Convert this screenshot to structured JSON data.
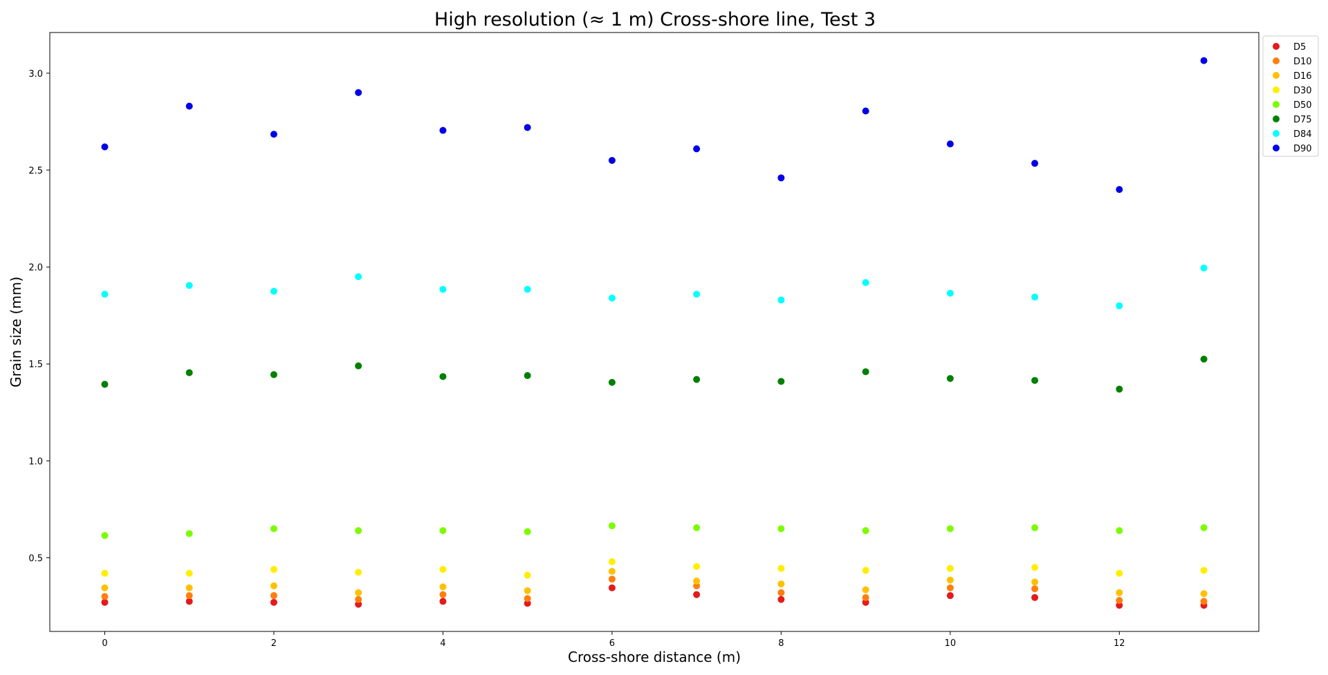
{
  "chart_data": {
    "type": "scatter",
    "title": "High resolution (≈ 1 m) Cross-shore line, Test 3",
    "xlabel": "Cross-shore distance (m)",
    "ylabel": "Grain size (mm)",
    "xlim": [
      -0.65,
      13.65
    ],
    "ylim": [
      0.12,
      3.21
    ],
    "xticks": [
      0,
      2,
      4,
      6,
      8,
      10,
      12
    ],
    "yticks": [
      0.5,
      1.0,
      1.5,
      2.0,
      2.5,
      3.0
    ],
    "xtick_labels": [
      "0",
      "2",
      "4",
      "6",
      "8",
      "10",
      "12"
    ],
    "ytick_labels": [
      "0.5",
      "1.0",
      "1.5",
      "2.0",
      "2.5",
      "3.0"
    ],
    "grid": false,
    "legend_position": "outside-top-right",
    "x": [
      0,
      1,
      2,
      3,
      4,
      5,
      6,
      7,
      8,
      9,
      10,
      11,
      12,
      13
    ],
    "series": [
      {
        "name": "D5",
        "color": "#e41a1c",
        "values": [
          0.27,
          0.275,
          0.27,
          0.26,
          0.275,
          0.265,
          0.345,
          0.31,
          0.285,
          0.27,
          0.305,
          0.295,
          0.255,
          0.255
        ]
      },
      {
        "name": "D10",
        "color": "#ff7f0e",
        "values": [
          0.3,
          0.305,
          0.305,
          0.285,
          0.31,
          0.29,
          0.39,
          0.355,
          0.32,
          0.295,
          0.345,
          0.34,
          0.28,
          0.275
        ]
      },
      {
        "name": "D16",
        "color": "#ffc000",
        "values": [
          0.345,
          0.345,
          0.355,
          0.32,
          0.35,
          0.33,
          0.43,
          0.38,
          0.365,
          0.335,
          0.385,
          0.375,
          0.32,
          0.315
        ]
      },
      {
        "name": "D30",
        "color": "#ffee00",
        "values": [
          0.42,
          0.42,
          0.44,
          0.425,
          0.44,
          0.41,
          0.48,
          0.455,
          0.445,
          0.435,
          0.445,
          0.45,
          0.42,
          0.435
        ]
      },
      {
        "name": "D50",
        "color": "#7cfc00",
        "values": [
          0.615,
          0.625,
          0.65,
          0.64,
          0.64,
          0.635,
          0.665,
          0.655,
          0.65,
          0.64,
          0.65,
          0.655,
          0.64,
          0.655
        ]
      },
      {
        "name": "D75",
        "color": "#008000",
        "values": [
          1.395,
          1.455,
          1.445,
          1.49,
          1.435,
          1.44,
          1.405,
          1.42,
          1.41,
          1.46,
          1.425,
          1.415,
          1.37,
          1.525
        ]
      },
      {
        "name": "D84",
        "color": "#00ffff",
        "values": [
          1.86,
          1.905,
          1.875,
          1.95,
          1.885,
          1.885,
          1.84,
          1.86,
          1.83,
          1.92,
          1.865,
          1.845,
          1.8,
          1.995
        ]
      },
      {
        "name": "D90",
        "color": "#0000e6",
        "values": [
          2.62,
          2.83,
          2.685,
          2.9,
          2.705,
          2.72,
          2.55,
          2.61,
          2.46,
          2.805,
          2.635,
          2.535,
          2.4,
          3.065
        ]
      }
    ]
  }
}
